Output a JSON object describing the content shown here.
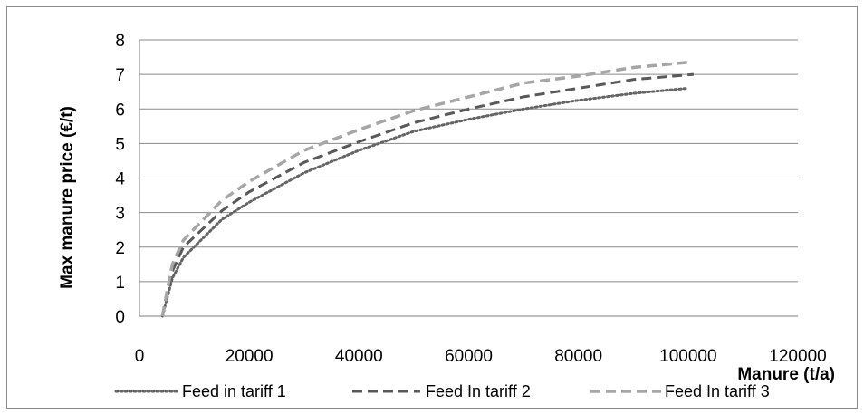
{
  "chart_data": {
    "type": "line",
    "title": "",
    "xlabel": "Manure (t/a)",
    "ylabel": "Max manure price (€/t)",
    "xlim": [
      0,
      120000
    ],
    "ylim": [
      0,
      8
    ],
    "x_ticks": [
      0,
      20000,
      40000,
      60000,
      80000,
      100000,
      120000
    ],
    "y_ticks": [
      0,
      1,
      2,
      3,
      4,
      5,
      6,
      7,
      8
    ],
    "x_tick_labels": [
      "0",
      "20000",
      "40000",
      "60000",
      "80000",
      "100000",
      "120000"
    ],
    "y_tick_labels": [
      "0",
      "1",
      "2",
      "3",
      "4",
      "5",
      "6",
      "7",
      "8"
    ],
    "grid": "horizontal",
    "legend_position": "bottom",
    "series": [
      {
        "name": "Feed in tariff 1",
        "color": "#646464",
        "style": "dotted",
        "points": [
          [
            4200,
            0
          ],
          [
            5000,
            0.5
          ],
          [
            6000,
            1.1
          ],
          [
            8000,
            1.7
          ],
          [
            15000,
            2.8
          ],
          [
            20000,
            3.3
          ],
          [
            30000,
            4.15
          ],
          [
            40000,
            4.8
          ],
          [
            50000,
            5.35
          ],
          [
            60000,
            5.7
          ],
          [
            70000,
            6.0
          ],
          [
            80000,
            6.25
          ],
          [
            90000,
            6.45
          ],
          [
            100000,
            6.6
          ]
        ]
      },
      {
        "name": "Feed In tariff 2",
        "color": "#595959",
        "style": "dashed",
        "points": [
          [
            4200,
            0
          ],
          [
            5000,
            0.6
          ],
          [
            6000,
            1.3
          ],
          [
            8000,
            2.0
          ],
          [
            15000,
            3.05
          ],
          [
            20000,
            3.6
          ],
          [
            30000,
            4.45
          ],
          [
            40000,
            5.05
          ],
          [
            50000,
            5.6
          ],
          [
            60000,
            6.0
          ],
          [
            70000,
            6.35
          ],
          [
            80000,
            6.6
          ],
          [
            90000,
            6.85
          ],
          [
            101000,
            7.0
          ]
        ]
      },
      {
        "name": "Feed In tariff 3",
        "color": "#a6a6a6",
        "style": "dashed",
        "points": [
          [
            4200,
            0
          ],
          [
            5000,
            0.7
          ],
          [
            6000,
            1.5
          ],
          [
            8000,
            2.2
          ],
          [
            15000,
            3.35
          ],
          [
            20000,
            3.9
          ],
          [
            30000,
            4.8
          ],
          [
            40000,
            5.4
          ],
          [
            50000,
            5.95
          ],
          [
            60000,
            6.35
          ],
          [
            70000,
            6.75
          ],
          [
            80000,
            6.95
          ],
          [
            90000,
            7.2
          ],
          [
            100000,
            7.35
          ]
        ]
      }
    ]
  }
}
